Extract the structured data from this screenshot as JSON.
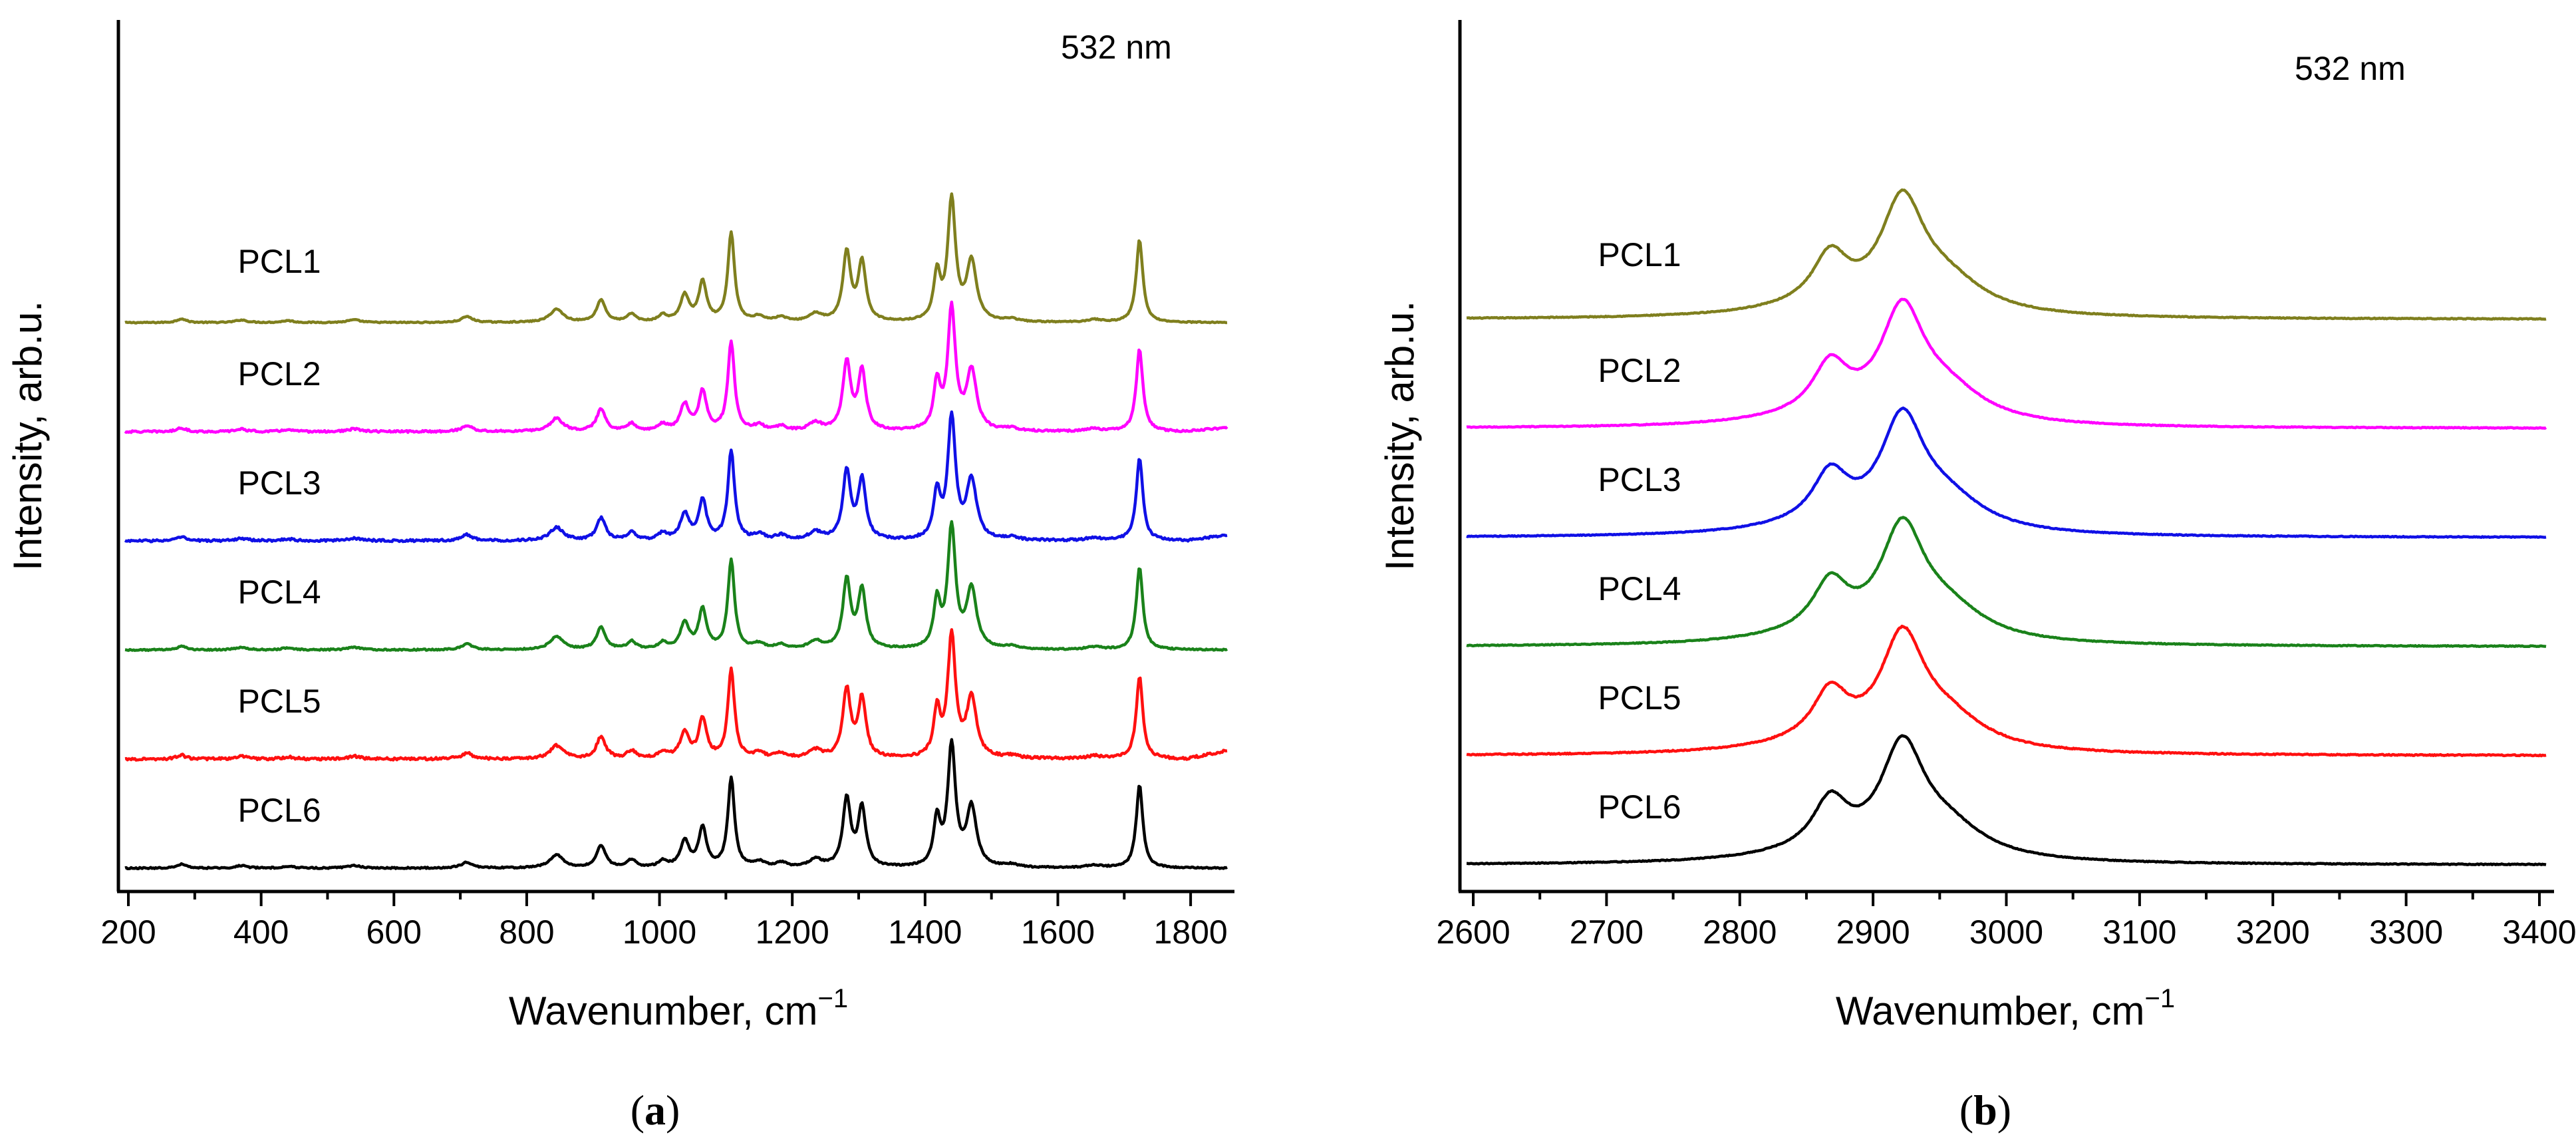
{
  "chart_data": [
    {
      "type": "line",
      "panel_label": "a",
      "title": "",
      "annotation": "532 nm",
      "xlabel": "Wavenumber, cm",
      "xlabel_sup": "−1",
      "ylabel": "Intensity, arb.u.",
      "xlim": [
        195,
        1855
      ],
      "xticks": [
        200,
        400,
        600,
        800,
        1000,
        1200,
        1400,
        1600,
        1800
      ],
      "xticks_minor": [
        300,
        500,
        700,
        900,
        1100,
        1300,
        1500,
        1700
      ],
      "grid": false,
      "baseline_step": 0.8,
      "peak_scale": 0.6,
      "peaks": [
        {
          "x": 280,
          "w": 8,
          "a": 0.03
        },
        {
          "x": 370,
          "w": 10,
          "a": 0.02
        },
        {
          "x": 440,
          "w": 10,
          "a": 0.015
        },
        {
          "x": 540,
          "w": 12,
          "a": 0.02
        },
        {
          "x": 710,
          "w": 10,
          "a": 0.045
        },
        {
          "x": 845,
          "w": 12,
          "a": 0.1
        },
        {
          "x": 912,
          "w": 8,
          "a": 0.17
        },
        {
          "x": 958,
          "w": 8,
          "a": 0.06
        },
        {
          "x": 1005,
          "w": 8,
          "a": 0.05
        },
        {
          "x": 1038,
          "w": 8,
          "a": 0.2
        },
        {
          "x": 1065,
          "w": 7,
          "a": 0.3
        },
        {
          "x": 1108,
          "w": 6,
          "a": 0.68
        },
        {
          "x": 1150,
          "w": 10,
          "a": 0.04
        },
        {
          "x": 1183,
          "w": 10,
          "a": 0.035
        },
        {
          "x": 1235,
          "w": 12,
          "a": 0.06
        },
        {
          "x": 1282,
          "w": 7,
          "a": 0.52
        },
        {
          "x": 1305,
          "w": 7,
          "a": 0.45
        },
        {
          "x": 1418,
          "w": 6,
          "a": 0.35
        },
        {
          "x": 1440,
          "w": 7,
          "a": 0.92
        },
        {
          "x": 1470,
          "w": 9,
          "a": 0.45
        },
        {
          "x": 1530,
          "w": 12,
          "a": 0.02
        },
        {
          "x": 1655,
          "w": 14,
          "a": 0.02
        },
        {
          "x": 1723,
          "w": 6,
          "a": 0.63
        }
      ],
      "series": [
        {
          "name": "PCL1",
          "color": "#7f7f1e",
          "offset": 5,
          "noise": 0.004,
          "tail": 0
        },
        {
          "name": "PCL2",
          "color": "#ff00ff",
          "offset": 4,
          "noise": 0.007,
          "tail": 0.03
        },
        {
          "name": "PCL3",
          "color": "#1010e6",
          "offset": 3,
          "noise": 0.008,
          "tail": 0.04
        },
        {
          "name": "PCL4",
          "color": "#1a821a",
          "offset": 2,
          "noise": 0.005,
          "tail": 0
        },
        {
          "name": "PCL5",
          "color": "#ff1010",
          "offset": 1,
          "noise": 0.009,
          "tail": 0.06
        },
        {
          "name": "PCL6",
          "color": "#000000",
          "offset": 0,
          "noise": 0.005,
          "tail": 0
        }
      ]
    },
    {
      "type": "line",
      "panel_label": "b",
      "title": "",
      "annotation": "532 nm",
      "xlabel": "Wavenumber, cm",
      "xlabel_sup": "−1",
      "ylabel": "Intensity, arb.u.",
      "xlim": [
        2595,
        3405
      ],
      "xticks": [
        2600,
        2700,
        2800,
        2900,
        3000,
        3100,
        3200,
        3300,
        3400
      ],
      "xticks_minor": [
        2650,
        2750,
        2850,
        2950,
        3050,
        3150,
        3250,
        3350
      ],
      "grid": false,
      "baseline_step": 0.8,
      "peak_scale": 0.62,
      "peaks": [
        {
          "x": 2868,
          "w": 16,
          "a": 0.36
        },
        {
          "x": 2922,
          "w": 20,
          "a": 0.78
        },
        {
          "x": 2955,
          "w": 35,
          "a": 0.22
        },
        {
          "x": 2860,
          "w": 60,
          "a": 0.06
        }
      ],
      "series": [
        {
          "name": "PCL1",
          "color": "#7f7f1e",
          "offset": 5,
          "noise": 0.003,
          "tail": 0
        },
        {
          "name": "PCL2",
          "color": "#ff00ff",
          "offset": 4,
          "noise": 0.003,
          "tail": 0
        },
        {
          "name": "PCL3",
          "color": "#1010e6",
          "offset": 3,
          "noise": 0.003,
          "tail": 0
        },
        {
          "name": "PCL4",
          "color": "#1a821a",
          "offset": 2,
          "noise": 0.003,
          "tail": 0
        },
        {
          "name": "PCL5",
          "color": "#ff1010",
          "offset": 1,
          "noise": 0.004,
          "tail": 0
        },
        {
          "name": "PCL6",
          "color": "#000000",
          "offset": 0,
          "noise": 0.003,
          "tail": 0
        }
      ]
    }
  ]
}
